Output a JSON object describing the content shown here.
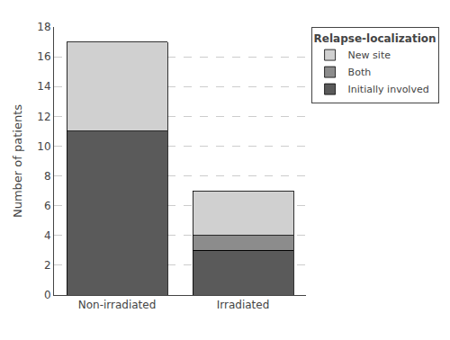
{
  "chart_data": {
    "type": "bar",
    "stacked": true,
    "categories": [
      "Non-irradiated",
      "Irradiated"
    ],
    "series": [
      {
        "name": "Initially involved",
        "color": "#5a5a5a",
        "values": [
          11,
          3
        ]
      },
      {
        "name": "Both",
        "color": "#8c8c8c",
        "values": [
          0,
          1
        ]
      },
      {
        "name": "New site",
        "color": "#d0d0d0",
        "values": [
          6,
          3
        ]
      }
    ],
    "ylabel": "Number of patients",
    "legend_title": "Relapse-localization",
    "legend": "upper right",
    "ylim": [
      0,
      18
    ],
    "yticks": [
      0,
      2,
      4,
      6,
      8,
      10,
      12,
      14,
      16,
      18
    ],
    "grid": true
  }
}
